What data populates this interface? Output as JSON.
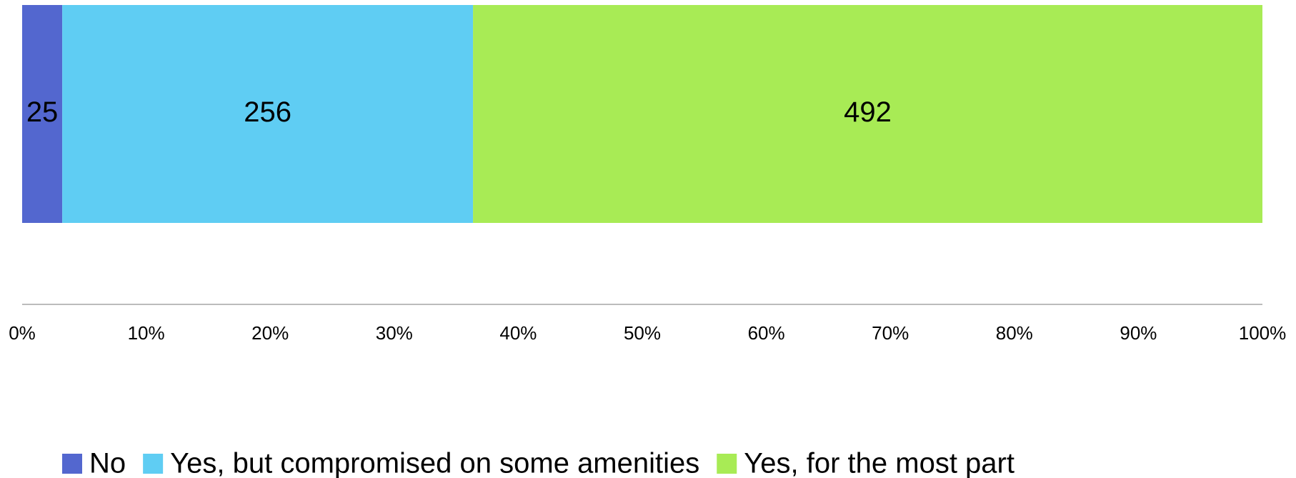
{
  "chart_data": {
    "type": "bar",
    "orientation": "horizontal",
    "stacking": "percent",
    "series": [
      {
        "name": "No",
        "color": "#5367cf",
        "values": [
          25
        ]
      },
      {
        "name": "Yes, but compromised on some amenities",
        "color": "#5fcdf3",
        "values": [
          256
        ]
      },
      {
        "name": "Yes, for the most part",
        "color": "#a8eb55",
        "values": [
          492
        ]
      }
    ],
    "xlim": [
      0,
      100
    ],
    "xticks": [
      {
        "value": 0,
        "label": "0%"
      },
      {
        "value": 10,
        "label": "10%"
      },
      {
        "value": 20,
        "label": "20%"
      },
      {
        "value": 30,
        "label": "30%"
      },
      {
        "value": 40,
        "label": "40%"
      },
      {
        "value": 50,
        "label": "50%"
      },
      {
        "value": 60,
        "label": "60%"
      },
      {
        "value": 70,
        "label": "70%"
      },
      {
        "value": 80,
        "label": "80%"
      },
      {
        "value": 90,
        "label": "90%"
      },
      {
        "value": 100,
        "label": "100%"
      }
    ],
    "legend": "bottom",
    "grid": false
  }
}
